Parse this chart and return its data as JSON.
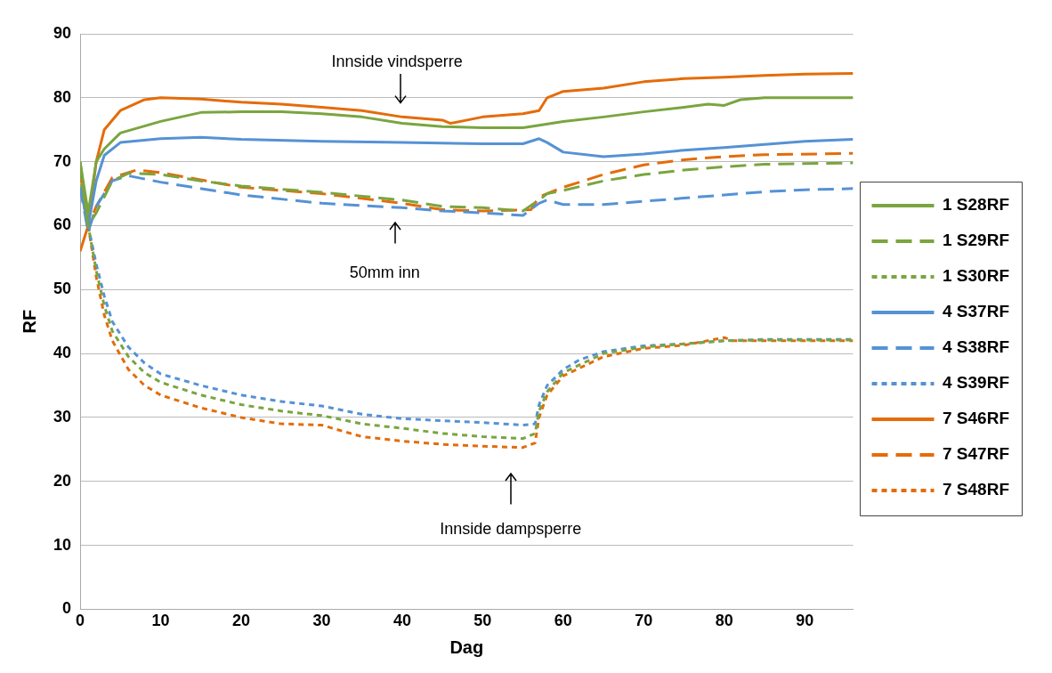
{
  "chart_data": {
    "type": "line",
    "xlabel": "Dag",
    "ylabel": "RF",
    "xlim": [
      0,
      96
    ],
    "xticks": [
      0,
      10,
      20,
      30,
      40,
      50,
      60,
      70,
      80,
      90
    ],
    "ylim": [
      0,
      90
    ],
    "yticks": [
      0,
      10,
      20,
      30,
      40,
      50,
      60,
      70,
      80,
      90
    ],
    "grid": "y",
    "legend": "right",
    "marker": "none",
    "annotations": [
      "Innside vindsperre",
      "50mm inn",
      "Innside dampsperre"
    ],
    "series": [
      {
        "name": "1 S28RF",
        "color": "#7aa53f",
        "line_style": "solid",
        "x": [
          0,
          1,
          2,
          3,
          5,
          10,
          15,
          20,
          25,
          30,
          35,
          40,
          45,
          50,
          55,
          57,
          60,
          65,
          70,
          75,
          78,
          80,
          82,
          85,
          96
        ],
        "values": [
          70,
          62,
          70,
          72,
          74.5,
          76.3,
          77.7,
          77.8,
          77.8,
          77.5,
          77,
          76,
          75.5,
          75.3,
          75.3,
          75.7,
          76.3,
          77,
          77.8,
          78.5,
          79,
          78.8,
          79.7,
          80,
          80
        ]
      },
      {
        "name": "1 S29RF",
        "color": "#7aa53f",
        "line_style": "dashed",
        "x": [
          0,
          1,
          2,
          4,
          6,
          10,
          15,
          20,
          30,
          40,
          45,
          50,
          55,
          57,
          58,
          60,
          65,
          70,
          75,
          80,
          85,
          90,
          96
        ],
        "values": [
          70,
          60,
          62,
          67,
          68.2,
          68,
          67,
          66.2,
          65.2,
          64,
          63,
          62.8,
          62.3,
          64,
          65,
          65.5,
          67,
          68,
          68.7,
          69.2,
          69.6,
          69.7,
          69.8
        ]
      },
      {
        "name": "1 S30RF",
        "color": "#7aa53f",
        "line_style": "dotted",
        "x": [
          0,
          1,
          2,
          3,
          4,
          6,
          8,
          10,
          15,
          20,
          25,
          30,
          35,
          40,
          45,
          50,
          55,
          56.5,
          57,
          58,
          60,
          65,
          70,
          75,
          80,
          85,
          96
        ],
        "values": [
          68,
          60,
          53,
          47.5,
          43.5,
          39.5,
          37,
          35.5,
          33.5,
          32,
          31,
          30.3,
          29,
          28.3,
          27.5,
          27,
          26.7,
          27.5,
          31,
          34,
          37,
          40,
          41,
          41.5,
          42,
          42.1,
          42.1
        ]
      },
      {
        "name": "4 S37RF",
        "color": "#5592d5",
        "line_style": "solid",
        "x": [
          0,
          1,
          2,
          3,
          5,
          10,
          15,
          20,
          30,
          40,
          50,
          55,
          57,
          58,
          60,
          65,
          70,
          75,
          80,
          85,
          90,
          96
        ],
        "values": [
          66,
          60,
          67,
          71,
          73,
          73.6,
          73.8,
          73.5,
          73.2,
          73,
          72.8,
          72.8,
          73.6,
          73,
          71.5,
          70.8,
          71.2,
          71.8,
          72.2,
          72.7,
          73.2,
          73.5
        ]
      },
      {
        "name": "4 S38RF",
        "color": "#5592d5",
        "line_style": "dashed",
        "x": [
          0,
          1,
          2,
          4,
          6,
          10,
          20,
          30,
          40,
          45,
          50,
          55,
          57,
          58,
          60,
          65,
          70,
          75,
          80,
          85,
          90,
          96
        ],
        "values": [
          66,
          59,
          63,
          67,
          67.8,
          66.8,
          64.8,
          63.5,
          62.8,
          62.3,
          62,
          61.6,
          63.5,
          64,
          63.3,
          63.3,
          63.8,
          64.3,
          64.8,
          65.3,
          65.6,
          65.8
        ]
      },
      {
        "name": "4 S39RF",
        "color": "#5592d5",
        "line_style": "dotted",
        "x": [
          0,
          1,
          2,
          3,
          4,
          6,
          8,
          10,
          15,
          20,
          25,
          30,
          35,
          40,
          50,
          55,
          56.5,
          57,
          58,
          60,
          62,
          65,
          70,
          75,
          80,
          85,
          96
        ],
        "values": [
          66,
          60,
          54,
          49,
          45,
          41,
          38.5,
          36.8,
          35,
          33.5,
          32.5,
          31.8,
          30.5,
          29.8,
          29.2,
          28.8,
          29,
          32,
          35,
          37.5,
          39,
          40.3,
          41.2,
          41.5,
          42,
          42.2,
          42.2
        ]
      },
      {
        "name": "7 S46RF",
        "color": "#e46c0a",
        "line_style": "solid",
        "x": [
          0,
          1,
          2,
          3,
          5,
          8,
          10,
          15,
          20,
          25,
          30,
          35,
          40,
          45,
          46,
          50,
          55,
          57,
          58,
          60,
          65,
          70,
          75,
          80,
          85,
          90,
          96
        ],
        "values": [
          56,
          60,
          70,
          75,
          78,
          79.7,
          80,
          79.8,
          79.3,
          79,
          78.5,
          78,
          77,
          76.5,
          76,
          77,
          77.5,
          78,
          80,
          81,
          81.5,
          82.5,
          83,
          83.2,
          83.5,
          83.7,
          83.8
        ]
      },
      {
        "name": "7 S47RF",
        "color": "#e46c0a",
        "line_style": "dashed",
        "x": [
          0,
          1,
          2,
          4,
          7,
          10,
          20,
          30,
          40,
          45,
          50,
          56,
          57,
          60,
          65,
          70,
          75,
          80,
          85,
          96
        ],
        "values": [
          69,
          60,
          63,
          67.5,
          68.7,
          68.3,
          66,
          65,
          63.5,
          62.5,
          62.3,
          62.5,
          64.5,
          66,
          68,
          69.5,
          70.3,
          70.8,
          71.1,
          71.3
        ]
      },
      {
        "name": "7 S48RF",
        "color": "#e46c0a",
        "line_style": "dotted",
        "x": [
          0,
          1,
          2,
          3,
          4,
          6,
          8,
          10,
          15,
          20,
          25,
          30,
          35,
          40,
          45,
          50,
          55,
          56.5,
          57,
          58,
          60,
          65,
          70,
          75,
          80,
          81,
          85,
          96
        ],
        "values": [
          69,
          60,
          52,
          46,
          42,
          37.5,
          35,
          33.5,
          31.5,
          30,
          29,
          28.8,
          27,
          26.3,
          25.8,
          25.5,
          25.3,
          26,
          30,
          33.5,
          36.5,
          39.5,
          40.8,
          41.3,
          42.5,
          42,
          42,
          42
        ]
      }
    ]
  }
}
